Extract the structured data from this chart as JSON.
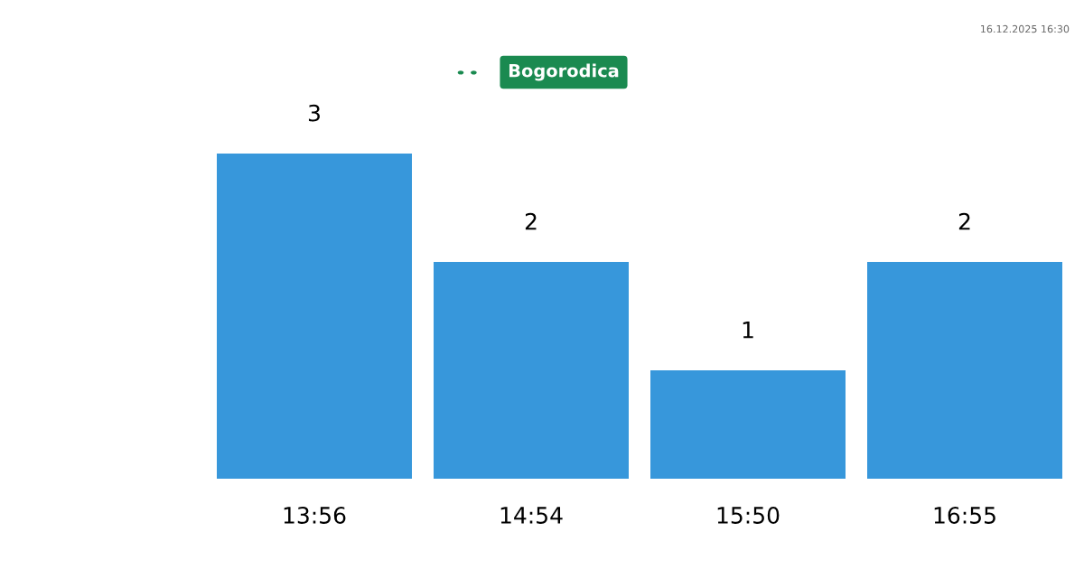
{
  "chart_data": {
    "type": "bar",
    "title": "Bogorodica",
    "categories": [
      "13:56",
      "14:54",
      "15:50",
      "16:55"
    ],
    "values": [
      3,
      2,
      1,
      2
    ],
    "color": "#3797db",
    "data_labels": true,
    "grid": false,
    "legend": false,
    "annotations": [
      "16.12.2025 16:30"
    ]
  }
}
